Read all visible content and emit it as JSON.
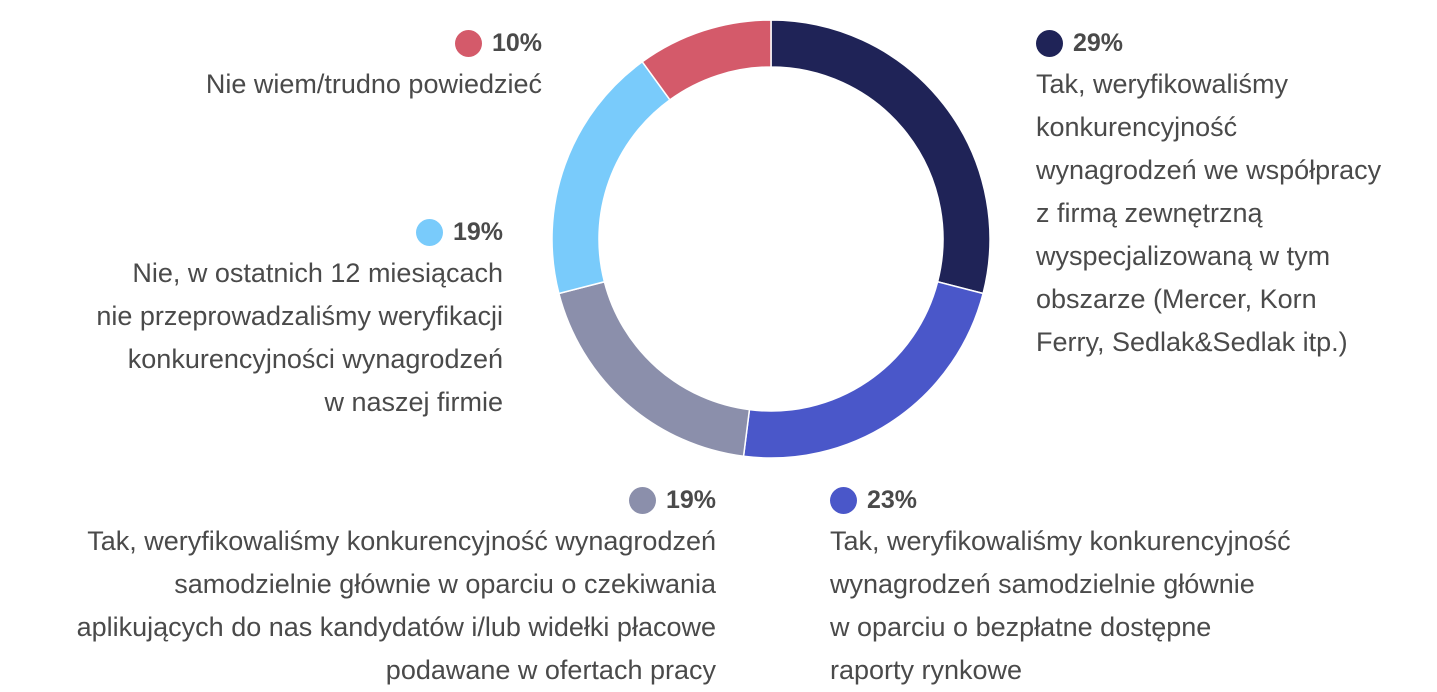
{
  "chart_data": {
    "type": "donut",
    "categories": [
      "Tak, weryfikowaliśmy\nkonkurencyjność\nwynagrodzeń we współpracy\nz firmą zewnętrzną\nwyspecjalizowaną w tym\nobszarze (Mercer, Korn\nFerry, Sedlak&Sedlak itp.)",
      "Tak, weryfikowaliśmy konkurencyjność\nwynagrodzeń samodzielnie głównie\nw oparciu o bezpłatne dostępne\nraporty rynkowe",
      "Tak, weryfikowaliśmy konkurencyjność wynagrodzeń\nsamodzielnie głównie w oparciu o czekiwania\naplikujących do nas kandydatów i/lub widełki płacowe\npodawane w ofertach pracy",
      "Nie, w ostatnich 12 miesiącach\nnie przeprowadzaliśmy weryfikacji\nkonkurencyjności wynagrodzeń\nw naszej firmie",
      "Nie wiem/trudno powiedzieć"
    ],
    "values": [
      29,
      23,
      19,
      19,
      10
    ],
    "value_labels": [
      "29%",
      "23%",
      "19%",
      "19%",
      "10%"
    ],
    "colors": [
      "#1f2357",
      "#4a57c9",
      "#8b8fab",
      "#79cbfb",
      "#d45a6a"
    ]
  }
}
